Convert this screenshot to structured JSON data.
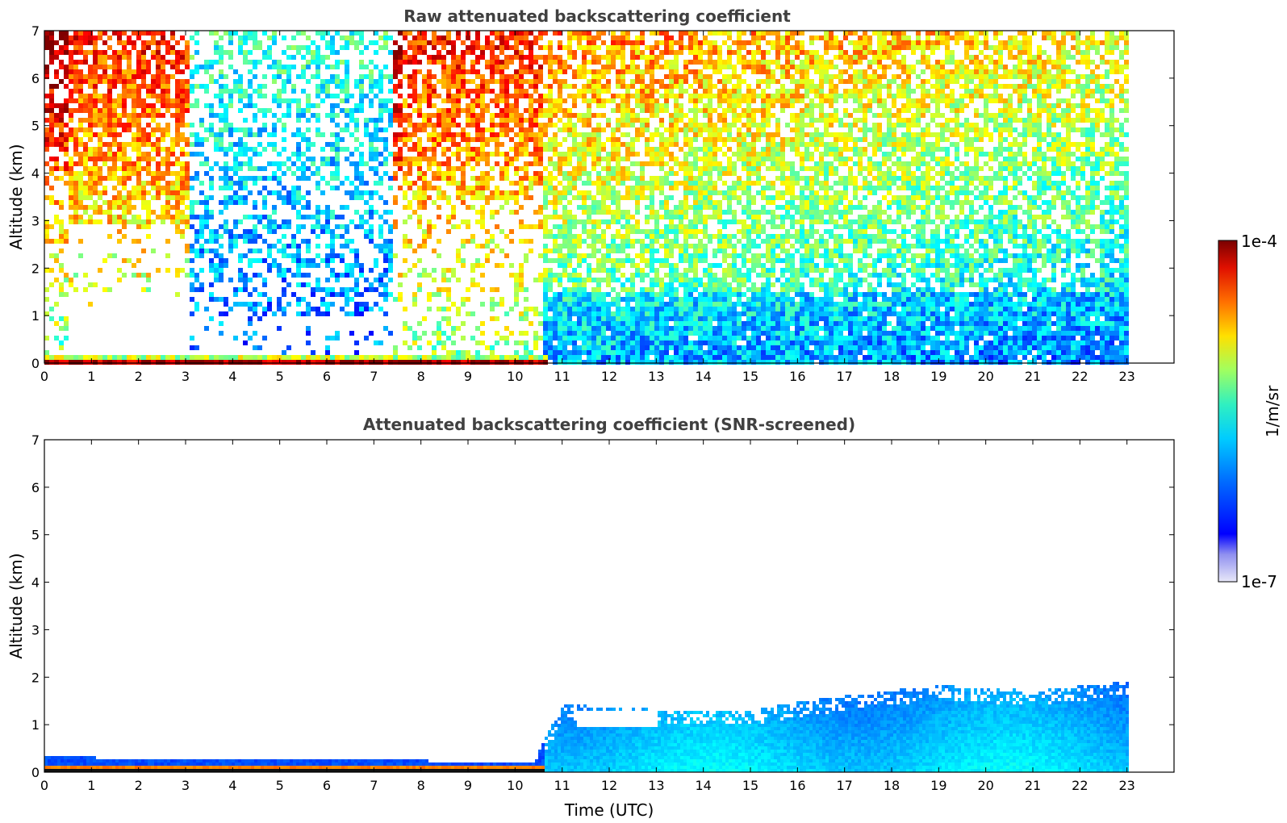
{
  "chart_data": [
    {
      "type": "heatmap",
      "title": "Raw attenuated backscattering coefficient",
      "xlabel": "",
      "ylabel": "Altitude (km)",
      "xlim": [
        0,
        24
      ],
      "ylim": [
        0,
        7
      ],
      "x_ticks": [
        "0",
        "1",
        "2",
        "3",
        "4",
        "5",
        "6",
        "7",
        "8",
        "9",
        "10",
        "11",
        "12",
        "13",
        "14",
        "15",
        "16",
        "17",
        "18",
        "19",
        "20",
        "21",
        "22",
        "23"
      ],
      "y_ticks": [
        "0",
        "1",
        "2",
        "3",
        "4",
        "5",
        "6",
        "7"
      ],
      "data_end_time": 23,
      "regions": [
        {
          "time": [
            0,
            10.6
          ],
          "altitude": [
            0,
            0.25
          ],
          "level": "very high (dark red)"
        },
        {
          "time": [
            10.5,
            23
          ],
          "altitude": [
            0,
            1.5
          ],
          "level": "low-medium (blue/cyan)"
        },
        {
          "time": [
            7.5,
            10.5
          ],
          "altitude": [
            3.5,
            7
          ],
          "level": "high noise (red/orange)"
        },
        {
          "time": [
            10.5,
            23
          ],
          "altitude": [
            2,
            7
          ],
          "level": "medium noise (green/yellow)"
        }
      ]
    },
    {
      "type": "heatmap",
      "title": "Attenuated backscattering coefficient (SNR-screened)",
      "xlabel": "Time (UTC)",
      "ylabel": "Altitude (km)",
      "xlim": [
        0,
        24
      ],
      "ylim": [
        0,
        7
      ],
      "x_ticks": [
        "0",
        "1",
        "2",
        "3",
        "4",
        "5",
        "6",
        "7",
        "8",
        "9",
        "10",
        "11",
        "12",
        "13",
        "14",
        "15",
        "16",
        "17",
        "18",
        "19",
        "20",
        "21",
        "22",
        "23"
      ],
      "y_ticks": [
        "0",
        "1",
        "2",
        "3",
        "4",
        "5",
        "6",
        "7"
      ],
      "data_end_time": 23,
      "layer_top_km": [
        {
          "time": 0,
          "top": 0.3
        },
        {
          "time": 10.4,
          "top": 0.2
        },
        {
          "time": 10.6,
          "top": 0.7
        },
        {
          "time": 11,
          "top": 1.4
        },
        {
          "time": 13,
          "top": 1.3
        },
        {
          "time": 15,
          "top": 1.3
        },
        {
          "time": 17,
          "top": 1.6
        },
        {
          "time": 19,
          "top": 1.8
        },
        {
          "time": 21,
          "top": 1.7
        },
        {
          "time": 23,
          "top": 1.9
        }
      ]
    }
  ],
  "colorbar": {
    "label": "1/m/sr",
    "max_label": "1e-4",
    "min_label": "1e-7",
    "colormap": "jet",
    "colors": [
      "#e6e6f5",
      "#b4b4f0",
      "#8080ff",
      "#0000ff",
      "#0040ff",
      "#0080ff",
      "#00c0ff",
      "#20e0e0",
      "#60ffa0",
      "#a0ff60",
      "#e0ff20",
      "#ffd000",
      "#ff8000",
      "#ff3000",
      "#d00000",
      "#800000"
    ]
  }
}
